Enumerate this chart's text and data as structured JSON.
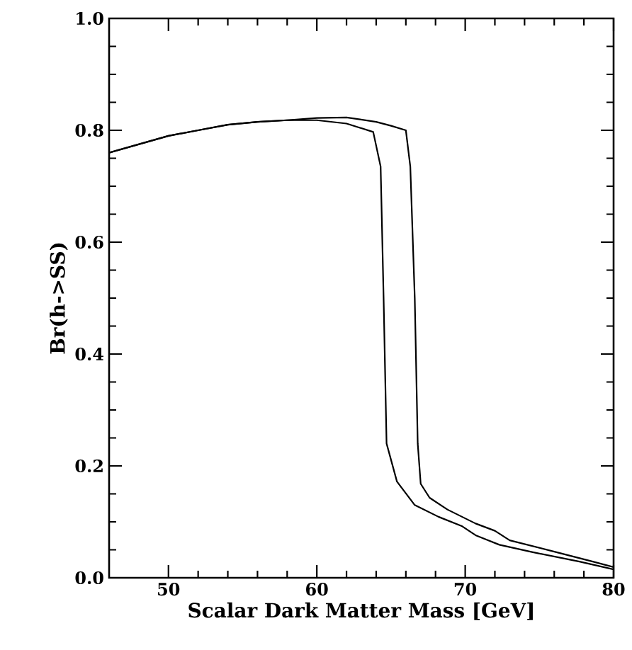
{
  "chart_data": {
    "type": "line",
    "xlabel": "Scalar Dark Matter Mass [GeV]",
    "ylabel": "Br(h->SS)",
    "xlim": [
      46,
      80
    ],
    "ylim": [
      0,
      1.0
    ],
    "xticks": [
      50,
      60,
      70,
      80
    ],
    "yticks": [
      {
        "value": 0,
        "label": "0.0"
      },
      0.2,
      0.4,
      0.6,
      0.8,
      {
        "value": 1.0,
        "label": "1.0"
      }
    ],
    "grid": false,
    "marker": "none",
    "line_style": "solid",
    "series": [
      {
        "color": "#000000",
        "x": [
          46,
          48,
          50,
          52,
          54,
          56,
          58,
          60,
          62,
          63.8,
          64.3,
          64.5,
          64.7,
          65.4,
          66.6,
          68.2,
          69.8,
          70.7,
          72.3,
          74.5,
          77.7,
          80
        ],
        "values": [
          0.76,
          0.775,
          0.79,
          0.8,
          0.81,
          0.815,
          0.818,
          0.818,
          0.812,
          0.797,
          0.735,
          0.5,
          0.24,
          0.172,
          0.13,
          0.109,
          0.092,
          0.076,
          0.059,
          0.046,
          0.029,
          0.015
        ]
      },
      {
        "color": "#000000",
        "x": [
          46,
          48,
          50,
          52,
          54,
          56,
          58,
          60,
          62,
          64,
          65,
          66,
          66.3,
          66.6,
          66.8,
          67.0,
          67.6,
          68.8,
          70.7,
          72.0,
          73.0,
          76.1,
          78.6,
          80
        ],
        "values": [
          0.76,
          0.775,
          0.79,
          0.8,
          0.81,
          0.815,
          0.818,
          0.822,
          0.823,
          0.815,
          0.808,
          0.8,
          0.735,
          0.5,
          0.24,
          0.168,
          0.143,
          0.122,
          0.097,
          0.084,
          0.067,
          0.046,
          0.029,
          0.019
        ]
      }
    ]
  }
}
